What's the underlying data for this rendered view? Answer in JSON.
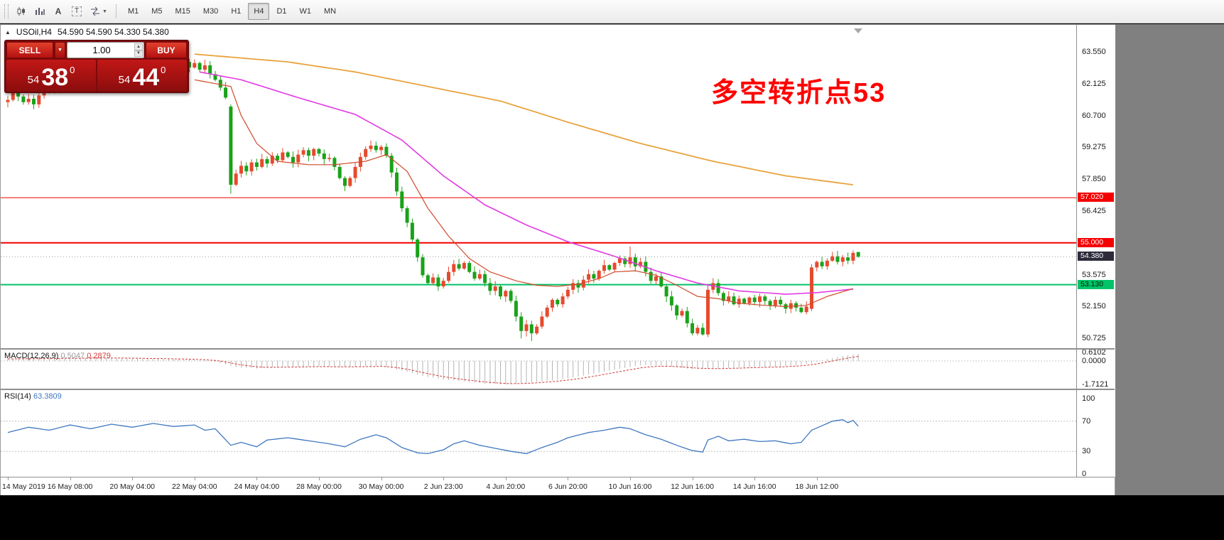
{
  "toolbar": {
    "icon_a": "A",
    "icon_t": "T",
    "timeframes": [
      "M1",
      "M5",
      "M15",
      "M30",
      "H1",
      "H4",
      "D1",
      "W1",
      "MN"
    ],
    "active_timeframe": "H4"
  },
  "symbol_header": {
    "symbol_tf": "USOil,H4",
    "ohlc": "54.590 54.590 54.330 54.380"
  },
  "icons": {
    "collapse": "▲",
    "dropdown": "▼",
    "spin_up": "▲",
    "spin_down": "▼"
  },
  "trade_panel": {
    "sell_label": "SELL",
    "buy_label": "BUY",
    "volume": "1.00",
    "sell_price": {
      "prefix": "54",
      "big": "38",
      "pip": "0"
    },
    "buy_price": {
      "prefix": "54",
      "big": "44",
      "pip": "0"
    }
  },
  "annotation": {
    "text": "多空转折点53",
    "color": "#ff0000"
  },
  "indicators": {
    "macd": {
      "name": "MACD(12,26,9)",
      "value_main": "0.5047",
      "value_signal": "0.2879"
    },
    "rsi": {
      "name": "RSI(14)",
      "value": "63.3809"
    }
  },
  "chart_data": {
    "type": "candlestick",
    "symbol": "USOil",
    "timeframe": "H4",
    "last_bar": {
      "open": 54.59,
      "high": 54.59,
      "low": 54.33,
      "close": 54.38
    },
    "y_axis": {
      "ticks": [
        63.55,
        62.125,
        60.7,
        59.275,
        57.85,
        56.425,
        55.0,
        53.575,
        52.15,
        50.725
      ]
    },
    "x_axis": {
      "labels": [
        [
          0,
          "14 May 2019"
        ],
        [
          12,
          "16 May 08:00"
        ],
        [
          24,
          "20 May 04:00"
        ],
        [
          36,
          "22 May 04:00"
        ],
        [
          48,
          "24 May 04:00"
        ],
        [
          60,
          "28 May 00:00"
        ],
        [
          72,
          "30 May 00:00"
        ],
        [
          84,
          "2 Jun 23:00"
        ],
        [
          96,
          "4 Jun 20:00"
        ],
        [
          108,
          "6 Jun 20:00"
        ],
        [
          120,
          "10 Jun 16:00"
        ],
        [
          132,
          "12 Jun 16:00"
        ],
        [
          144,
          "14 Jun 16:00"
        ],
        [
          156,
          "18 Jun 12:00"
        ]
      ]
    },
    "horizontal_lines": [
      {
        "price": 57.02,
        "color": "#f50000",
        "width": 1,
        "label_text_color": "#ffffff"
      },
      {
        "price": 55.0,
        "color": "#f50000",
        "width": 2,
        "label_text_color": "#ffffff"
      },
      {
        "price": 53.13,
        "color": "#00c368",
        "width": 2,
        "label_text_color": "#002200"
      }
    ],
    "current_price_line": {
      "price": 54.38,
      "box_color": "#2b2b3a"
    },
    "candles": {
      "up_color": "#e64a2e",
      "down_color": "#1aa21a",
      "first_open": 61.3,
      "closes": [
        61.4,
        61.75,
        61.55,
        61.3,
        61.45,
        61.2,
        61.6,
        61.85,
        62.05,
        61.9,
        62.2,
        62.1,
        62.35,
        62.2,
        62.45,
        62.3,
        62.55,
        62.4,
        62.6,
        62.5,
        62.7,
        62.55,
        62.75,
        62.6,
        62.85,
        62.7,
        62.9,
        62.75,
        62.95,
        62.8,
        63.0,
        62.9,
        63.05,
        62.95,
        63.1,
        62.85,
        63.05,
        62.75,
        62.95,
        62.55,
        62.3,
        61.95,
        61.5,
        57.6,
        58.1,
        58.45,
        58.2,
        58.6,
        58.4,
        58.75,
        58.55,
        58.9,
        58.7,
        59.05,
        58.85,
        58.6,
        58.95,
        59.15,
        58.9,
        59.2,
        59.0,
        58.75,
        58.8,
        58.4,
        57.9,
        57.55,
        57.9,
        58.4,
        58.85,
        59.2,
        59.35,
        59.15,
        59.3,
        58.9,
        58.15,
        57.3,
        56.55,
        55.9,
        55.15,
        54.35,
        53.55,
        53.2,
        53.45,
        53.05,
        53.3,
        53.7,
        54.05,
        53.85,
        54.1,
        53.7,
        53.4,
        53.6,
        53.2,
        52.85,
        53.05,
        52.6,
        52.85,
        52.4,
        51.7,
        51.05,
        51.35,
        50.95,
        51.25,
        51.7,
        52.1,
        52.45,
        52.25,
        52.6,
        52.9,
        53.2,
        53.0,
        53.35,
        53.6,
        53.4,
        53.75,
        54.0,
        53.8,
        54.1,
        54.3,
        54.05,
        54.35,
        53.95,
        54.15,
        53.7,
        53.3,
        53.5,
        53.05,
        52.6,
        52.2,
        51.75,
        51.95,
        51.4,
        50.95,
        51.2,
        50.9,
        52.9,
        53.2,
        52.75,
        52.4,
        52.6,
        52.25,
        52.5,
        52.3,
        52.55,
        52.35,
        52.6,
        52.4,
        52.2,
        52.45,
        52.25,
        52.05,
        52.3,
        52.1,
        51.9,
        52.15,
        53.9,
        54.15,
        53.95,
        54.2,
        54.4,
        54.15,
        54.35,
        54.2,
        54.55,
        54.38
      ],
      "overrides": {
        "43": {
          "o": 61.1,
          "h": 61.2,
          "l": 57.2
        },
        "99": {
          "l": 50.72
        },
        "101": {
          "l": 50.6
        },
        "120": {
          "h": 54.84
        },
        "135": {
          "o": 50.9,
          "l": 50.78,
          "h": 53.1
        },
        "155": {
          "o": 52.05,
          "h": 54.05,
          "l": 51.95
        },
        "159": {
          "h": 54.6
        },
        "164": {
          "o": 54.59,
          "h": 54.59,
          "l": 54.33,
          "c": 54.38
        }
      }
    },
    "moving_averages": [
      {
        "name": "MA-slow",
        "color": "#e8a33d",
        "width": 1.8,
        "points": [
          [
            36,
            63.45
          ],
          [
            54,
            63.1
          ],
          [
            67,
            62.65
          ],
          [
            81,
            62.0
          ],
          [
            95,
            61.35
          ],
          [
            108,
            60.4
          ],
          [
            122,
            59.45
          ],
          [
            136,
            58.65
          ],
          [
            150,
            58.0
          ],
          [
            163,
            57.6
          ]
        ]
      },
      {
        "name": "MA-medium",
        "color": "#e23ae2",
        "width": 1.6,
        "points": [
          [
            37,
            62.65
          ],
          [
            45,
            62.3
          ],
          [
            56,
            61.5
          ],
          [
            67,
            60.75
          ],
          [
            76,
            59.6
          ],
          [
            84,
            58.0
          ],
          [
            92,
            56.7
          ],
          [
            100,
            55.8
          ],
          [
            108,
            55.05
          ],
          [
            117,
            54.4
          ],
          [
            125,
            53.75
          ],
          [
            133,
            53.2
          ],
          [
            141,
            52.85
          ],
          [
            150,
            52.7
          ],
          [
            156,
            52.77
          ],
          [
            163,
            52.93
          ]
        ]
      },
      {
        "name": "MA-fast",
        "color": "#cf4a2a",
        "width": 1.2,
        "points": [
          [
            36,
            62.3
          ],
          [
            43,
            62.0
          ],
          [
            45,
            60.7
          ],
          [
            48,
            59.45
          ],
          [
            52,
            58.65
          ],
          [
            58,
            58.5
          ],
          [
            63,
            58.5
          ],
          [
            69,
            58.65
          ],
          [
            73,
            58.95
          ],
          [
            77,
            58.2
          ],
          [
            81,
            56.55
          ],
          [
            85,
            55.3
          ],
          [
            89,
            54.3
          ],
          [
            93,
            53.7
          ],
          [
            98,
            53.3
          ],
          [
            102,
            53.1
          ],
          [
            106,
            53.05
          ],
          [
            110,
            53.15
          ],
          [
            114,
            53.4
          ],
          [
            117,
            53.7
          ],
          [
            121,
            53.75
          ],
          [
            125,
            53.55
          ],
          [
            129,
            53.1
          ],
          [
            133,
            52.6
          ],
          [
            137,
            52.5
          ],
          [
            141,
            52.3
          ],
          [
            146,
            52.2
          ],
          [
            150,
            52.15
          ],
          [
            154,
            52.2
          ],
          [
            158,
            52.6
          ],
          [
            163,
            52.95
          ]
        ]
      }
    ],
    "macd": {
      "label": "MACD(12,26,9)",
      "main": 0.5047,
      "signal": 0.2879,
      "axis": [
        0.6102,
        0,
        -1.7121
      ],
      "points": [
        [
          0,
          0.15
        ],
        [
          10,
          0.2
        ],
        [
          20,
          0.22
        ],
        [
          30,
          0.15
        ],
        [
          36,
          0.1
        ],
        [
          40,
          -0.05
        ],
        [
          44,
          -0.45
        ],
        [
          48,
          -0.55
        ],
        [
          52,
          -0.45
        ],
        [
          56,
          -0.42
        ],
        [
          60,
          -0.4
        ],
        [
          64,
          -0.45
        ],
        [
          68,
          -0.4
        ],
        [
          72,
          -0.38
        ],
        [
          76,
          -0.7
        ],
        [
          80,
          -1.1
        ],
        [
          84,
          -1.35
        ],
        [
          88,
          -1.5
        ],
        [
          92,
          -1.65
        ],
        [
          96,
          -1.71
        ],
        [
          100,
          -1.6
        ],
        [
          104,
          -1.45
        ],
        [
          108,
          -1.28
        ],
        [
          112,
          -1.0
        ],
        [
          116,
          -0.7
        ],
        [
          120,
          -0.45
        ],
        [
          122,
          -0.3
        ],
        [
          126,
          -0.35
        ],
        [
          130,
          -0.5
        ],
        [
          132,
          -0.6
        ],
        [
          136,
          -0.58
        ],
        [
          140,
          -0.5
        ],
        [
          144,
          -0.45
        ],
        [
          148,
          -0.42
        ],
        [
          152,
          -0.32
        ],
        [
          155,
          -0.15
        ],
        [
          157,
          0.05
        ],
        [
          160,
          0.3
        ],
        [
          162,
          0.42
        ],
        [
          164,
          0.5047
        ]
      ]
    },
    "rsi": {
      "label": "RSI(14)",
      "value": 63.3809,
      "levels": [
        100,
        70,
        30,
        0
      ],
      "points": [
        [
          0,
          55
        ],
        [
          4,
          62
        ],
        [
          8,
          58
        ],
        [
          12,
          65
        ],
        [
          16,
          60
        ],
        [
          20,
          66
        ],
        [
          24,
          62
        ],
        [
          28,
          67
        ],
        [
          32,
          63
        ],
        [
          36,
          65
        ],
        [
          38,
          58
        ],
        [
          40,
          60
        ],
        [
          43,
          38
        ],
        [
          45,
          42
        ],
        [
          48,
          36
        ],
        [
          50,
          45
        ],
        [
          54,
          48
        ],
        [
          58,
          44
        ],
        [
          62,
          40
        ],
        [
          65,
          36
        ],
        [
          68,
          46
        ],
        [
          71,
          52
        ],
        [
          73,
          48
        ],
        [
          76,
          35
        ],
        [
          79,
          28
        ],
        [
          81,
          27
        ],
        [
          84,
          32
        ],
        [
          86,
          40
        ],
        [
          88,
          44
        ],
        [
          91,
          38
        ],
        [
          94,
          34
        ],
        [
          97,
          30
        ],
        [
          100,
          27
        ],
        [
          103,
          35
        ],
        [
          106,
          42
        ],
        [
          108,
          48
        ],
        [
          112,
          55
        ],
        [
          115,
          58
        ],
        [
          118,
          62
        ],
        [
          120,
          60
        ],
        [
          123,
          52
        ],
        [
          126,
          46
        ],
        [
          129,
          38
        ],
        [
          132,
          31
        ],
        [
          134,
          29
        ],
        [
          135,
          45
        ],
        [
          137,
          50
        ],
        [
          139,
          44
        ],
        [
          142,
          46
        ],
        [
          145,
          43
        ],
        [
          148,
          44
        ],
        [
          151,
          40
        ],
        [
          153,
          42
        ],
        [
          155,
          58
        ],
        [
          157,
          64
        ],
        [
          159,
          70
        ],
        [
          161,
          72
        ],
        [
          162,
          68
        ],
        [
          163,
          71
        ],
        [
          164,
          63.38
        ]
      ]
    }
  }
}
